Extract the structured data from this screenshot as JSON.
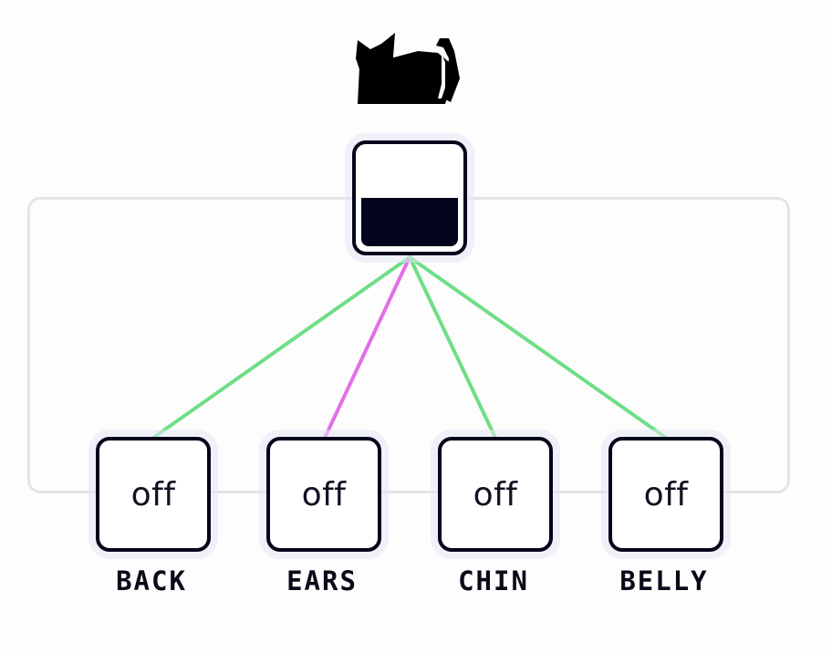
{
  "header": {
    "icon": "cat-icon"
  },
  "hub": {
    "icon": "gauge",
    "fill_level": 0.5,
    "fill_color": "#04041c"
  },
  "switches": [
    {
      "label": "BACK",
      "state": "off",
      "wire_color": "#6fde87"
    },
    {
      "label": "EARS",
      "state": "off",
      "wire_color": "#e36ee8"
    },
    {
      "label": "CHIN",
      "state": "off",
      "wire_color": "#6fde87"
    },
    {
      "label": "BELLY",
      "state": "off",
      "wire_color": "#6fde87"
    }
  ],
  "colors": {
    "border": "#06061c",
    "frame": "#e4e4e4",
    "background": "#fdfdfd"
  }
}
